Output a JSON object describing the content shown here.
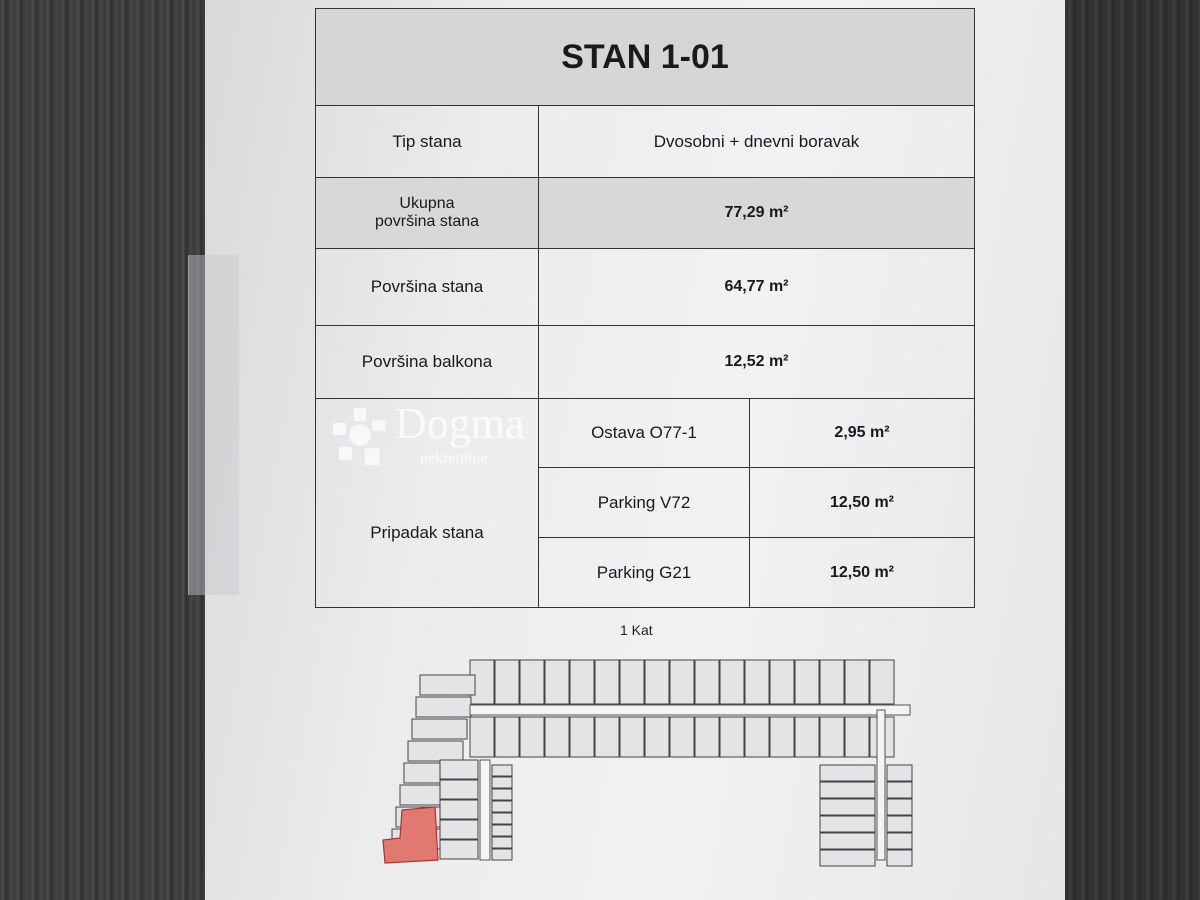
{
  "title": "STAN 1-01",
  "rows": [
    {
      "label": "Tip stana",
      "value": "Dvosobni + dnevni boravak"
    },
    {
      "label": "Ukupna\npovršina stana",
      "value": "77,29 m²"
    },
    {
      "label": "Površina stana",
      "value": "64,77 m²"
    },
    {
      "label": "Površina balkona",
      "value": "12,52 m²"
    }
  ],
  "appurtenance": {
    "label": "Pripadak stana",
    "items": [
      {
        "name": "Ostava O77-1",
        "value": "2,95 m²"
      },
      {
        "name": "Parking V72",
        "value": "12,50 m²"
      },
      {
        "name": "Parking G21",
        "value": "12,50 m²"
      }
    ]
  },
  "floor_label": "1 Kat",
  "watermark": {
    "brand": "Dogma",
    "sub": "nekretnine"
  },
  "colors": {
    "highlight_unit": "#e07a70"
  }
}
